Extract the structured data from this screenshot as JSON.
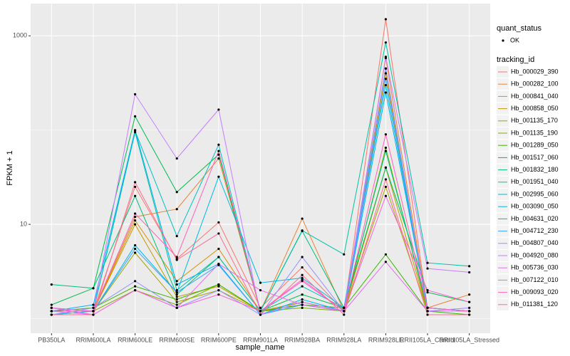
{
  "chart_data": {
    "type": "line",
    "log_y": true,
    "grid": true,
    "x_label": "sample_name",
    "y_label": "FPKM + 1",
    "categories": [
      "PB350LA",
      "RRIM600LA",
      "RRIM600LE",
      "RRIM600SE",
      "RRIM600PE",
      "RRIM901LA",
      "RRIM928BA",
      "RRIM928LA",
      "RRIM928LE",
      "RRII105LA_Control",
      "RRII105LA_Stressed"
    ],
    "ylim": [
      0.7,
      2200
    ],
    "yticks": [
      10,
      1000
    ],
    "point_color": "#000000",
    "status_legend": {
      "title": "quant_status",
      "entries": [
        "OK"
      ]
    },
    "legend_title": "tracking_id",
    "series": [
      {
        "name": "Hb_000029_390",
        "color": "#F8766D",
        "values": [
          1.3,
          1.2,
          25,
          4.3,
          10.5,
          1.3,
          3.5,
          1.2,
          1500,
          1.3,
          1.2
        ]
      },
      {
        "name": "Hb_000282_100",
        "color": "#EA8331",
        "values": [
          1.2,
          1.2,
          12,
          14.5,
          50,
          1.2,
          11.5,
          1.2,
          580,
          1.3,
          1.8
        ]
      },
      {
        "name": "Hb_000841_040",
        "color": "#D89000",
        "values": [
          1.2,
          1.2,
          11,
          2.5,
          5.5,
          1.2,
          1.5,
          1.2,
          400,
          1.2,
          1.2
        ]
      },
      {
        "name": "Hb_000858_050",
        "color": "#C09B00",
        "values": [
          1.2,
          1.2,
          10,
          1.7,
          2.2,
          1.2,
          1.5,
          1.2,
          40,
          1.2,
          1.2
        ]
      },
      {
        "name": "Hb_001135_170",
        "color": "#A3A500",
        "values": [
          1.2,
          1.2,
          5,
          1.5,
          2.0,
          1.2,
          1.4,
          1.2,
          25,
          1.2,
          1.2
        ]
      },
      {
        "name": "Hb_001135_190",
        "color": "#7CAE00",
        "values": [
          1.1,
          1.2,
          2,
          1.4,
          2.3,
          1.2,
          1.3,
          1.2,
          65,
          1.2,
          1.2
        ]
      },
      {
        "name": "Hb_001289_050",
        "color": "#39B600",
        "values": [
          1.2,
          1.3,
          2.2,
          1.6,
          2.3,
          1.2,
          1.4,
          1.3,
          4.8,
          1.2,
          1.1
        ]
      },
      {
        "name": "Hb_001517_060",
        "color": "#00BB4E",
        "values": [
          1.4,
          2.1,
          140,
          22,
          55,
          1.2,
          1.8,
          1.3,
          40,
          1.9,
          1.5
        ]
      },
      {
        "name": "Hb_001832_180",
        "color": "#00BF7D",
        "values": [
          2.3,
          2.1,
          20,
          1.8,
          4.5,
          1.2,
          8.5,
          1.3,
          60,
          1.3,
          1.2
        ]
      },
      {
        "name": "Hb_001951_040",
        "color": "#00C1A3",
        "values": [
          1.2,
          1.2,
          95,
          2.0,
          4.5,
          1.2,
          8.6,
          4.8,
          850,
          3.9,
          3.6
        ]
      },
      {
        "name": "Hb_002995_060",
        "color": "#00BFC4",
        "values": [
          1.2,
          1.2,
          98,
          7.5,
          70,
          1.2,
          2.2,
          1.3,
          300,
          1.3,
          1.2
        ]
      },
      {
        "name": "Hb_003090_050",
        "color": "#00BAE0",
        "values": [
          1.1,
          1.2,
          6,
          1.9,
          32,
          2.4,
          2.7,
          1.3,
          450,
          1.2,
          1.2
        ]
      },
      {
        "name": "Hb_004631_020",
        "color": "#00B0F6",
        "values": [
          1.2,
          1.4,
          100,
          2.3,
          3.8,
          1.1,
          1.6,
          1.2,
          250,
          1.3,
          1.2
        ]
      },
      {
        "name": "Hb_004712_230",
        "color": "#35A2FF",
        "values": [
          1.2,
          1.2,
          5.5,
          1.9,
          3.7,
          1.1,
          1.4,
          1.2,
          350,
          1.3,
          1.2
        ]
      },
      {
        "name": "Hb_004807_040",
        "color": "#9590FF",
        "values": [
          1.1,
          1.3,
          2.5,
          1.3,
          2.0,
          1.1,
          4.5,
          1.2,
          450,
          1.2,
          1.3
        ]
      },
      {
        "name": "Hb_004920_080",
        "color": "#C77CFF",
        "values": [
          1.3,
          1.2,
          240,
          50,
          165,
          1.1,
          1.5,
          1.2,
          600,
          3.4,
          3.1
        ]
      },
      {
        "name": "Hb_005736_030",
        "color": "#E76BF3",
        "values": [
          1.2,
          1.1,
          2,
          1.3,
          3.8,
          2.0,
          1.4,
          1.2,
          4,
          1.2,
          1.2
        ]
      },
      {
        "name": "Hb_007122_010",
        "color": "#FA62DB",
        "values": [
          1.3,
          1.1,
          2.0,
          1.3,
          1.8,
          1.2,
          2.5,
          1.2,
          20,
          2.0,
          1.5
        ]
      },
      {
        "name": "Hb_009093_020",
        "color": "#FF62BC",
        "values": [
          1.2,
          1.2,
          13,
          4.5,
          60,
          1.2,
          2.6,
          1.2,
          90,
          1.3,
          1.2
        ]
      },
      {
        "name": "Hb_011381_120",
        "color": "#FF6C91",
        "values": [
          1.1,
          1.1,
          28,
          4.2,
          8.0,
          1.1,
          2.9,
          1.1,
          30,
          1.1,
          1.1
        ]
      }
    ]
  }
}
